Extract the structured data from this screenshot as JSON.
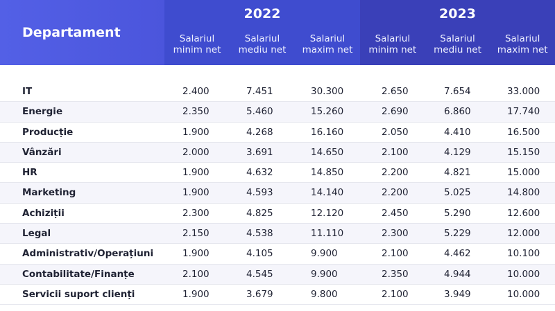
{
  "header": {
    "department_label": "Departament",
    "years": [
      {
        "year": "2022",
        "columns": [
          "Salariul minim net",
          "Salariul mediu net",
          "Salariul maxim net"
        ]
      },
      {
        "year": "2023",
        "columns": [
          "Salariul minim net",
          "Salariul mediu net",
          "Salariul maxim net"
        ]
      }
    ]
  },
  "rows": [
    {
      "department": "IT",
      "values": [
        "2.400",
        "7.451",
        "30.300",
        "2.650",
        "7.654",
        "33.000"
      ]
    },
    {
      "department": "Energie",
      "values": [
        "2.350",
        "5.460",
        "15.260",
        "2.690",
        "6.860",
        "17.740"
      ]
    },
    {
      "department": "Producție",
      "values": [
        "1.900",
        "4.268",
        "16.160",
        "2.050",
        "4.410",
        "16.500"
      ]
    },
    {
      "department": "Vânzări",
      "values": [
        "2.000",
        "3.691",
        "14.650",
        "2.100",
        "4.129",
        "15.150"
      ]
    },
    {
      "department": "HR",
      "values": [
        "1.900",
        "4.632",
        "14.850",
        "2.200",
        "4.821",
        "15.000"
      ]
    },
    {
      "department": "Marketing",
      "values": [
        "1.900",
        "4.593",
        "14.140",
        "2.200",
        "5.025",
        "14.800"
      ]
    },
    {
      "department": "Achiziții",
      "values": [
        "2.300",
        "4.825",
        "12.120",
        "2.450",
        "5.290",
        "12.600"
      ]
    },
    {
      "department": "Legal",
      "values": [
        "2.150",
        "4.538",
        "11.110",
        "2.300",
        "5.229",
        "12.000"
      ]
    },
    {
      "department": "Administrativ/Operațiuni",
      "values": [
        "1.900",
        "4.105",
        "9.900",
        "2.100",
        "4.462",
        "10.100"
      ]
    },
    {
      "department": "Contabilitate/Finanțe",
      "values": [
        "2.100",
        "4.545",
        "9.900",
        "2.350",
        "4.944",
        "10.000"
      ]
    },
    {
      "department": "Servicii suport clienți",
      "values": [
        "1.900",
        "3.679",
        "9.800",
        "2.100",
        "3.949",
        "10.000"
      ]
    }
  ],
  "colors": {
    "header_left": "#5360e6",
    "header_2022": "#3f4ccf",
    "header_2023": "#3a40b8",
    "row_alt": "#f5f5fb"
  }
}
